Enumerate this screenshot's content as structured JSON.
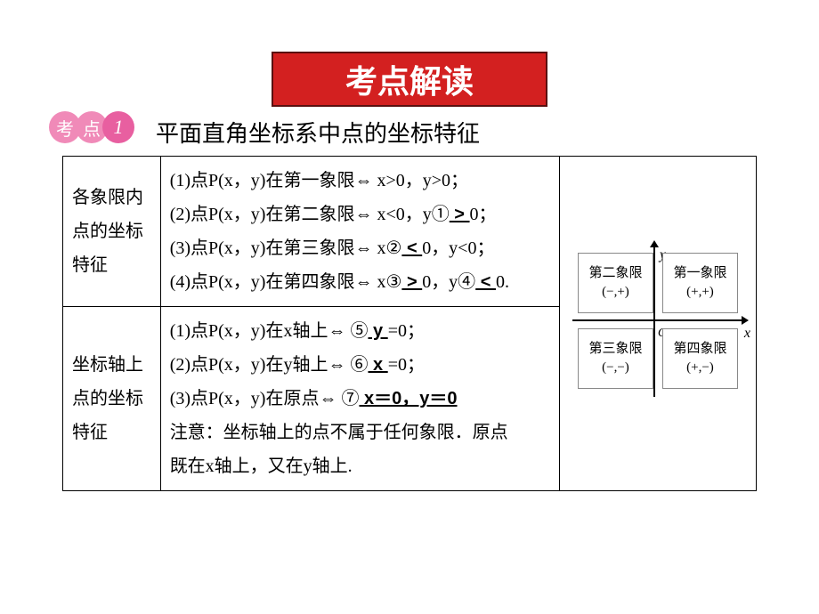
{
  "colors": {
    "title_bg": "#d32020",
    "title_border": "#5a1010",
    "title_text": "#ffffff",
    "badge_light": "#f08ab8",
    "badge_dark": "#e85fa0",
    "border": "#000000",
    "background": "#ffffff"
  },
  "title": "考点解读",
  "badge": {
    "char1": "考",
    "char2": "点",
    "num": "1"
  },
  "subtitle": "平面直角坐标系中点的坐标特征",
  "table": {
    "row1": {
      "label": "各象限内点的坐标特征",
      "lines": {
        "l1_pre": "(1)点P(x，y)在第一象限⇔ x>0，y>0；",
        "l2_pre": "(2)点P(x，y)在第二象限⇔ x<0，y①",
        "l2_ans": " > ",
        "l2_post": "0；",
        "l3_pre": "(3)点P(x，y)在第三象限⇔ x②",
        "l3_ans": " < ",
        "l3_post": "0，y<0；",
        "l4_pre": "(4)点P(x，y)在第四象限⇔ x③",
        "l4_ans1": " > ",
        "l4_mid": "0，y④",
        "l4_ans2": " < ",
        "l4_post": "0."
      }
    },
    "row2": {
      "label": "坐标轴上点的坐标特征",
      "lines": {
        "l1_pre": "(1)点P(x，y)在x轴上⇔ ⑤",
        "l1_ans": " y ",
        "l1_post": "=0；",
        "l2_pre": "(2)点P(x，y)在y轴上⇔ ⑥",
        "l2_ans": " x ",
        "l2_post": "=0；",
        "l3_pre": "(3)点P(x，y)在原点⇔ ⑦",
        "l3_ans": " x＝0，y＝0 ",
        "l4": "注意：坐标轴上的点不属于任何象限．原点",
        "l5": "既在x轴上，又在y轴上."
      }
    }
  },
  "diagram": {
    "q1": {
      "name": "第一象限",
      "sign": "(+,+)"
    },
    "q2": {
      "name": "第二象限",
      "sign": "(−,+)"
    },
    "q3": {
      "name": "第三象限",
      "sign": "(−,−)"
    },
    "q4": {
      "name": "第四象限",
      "sign": "(+,−)"
    },
    "labels": {
      "x": "x",
      "y": "y",
      "o": "O"
    }
  },
  "fonts": {
    "title_size": 36,
    "subtitle_size": 26,
    "body_size": 20,
    "diagram_size": 15
  }
}
